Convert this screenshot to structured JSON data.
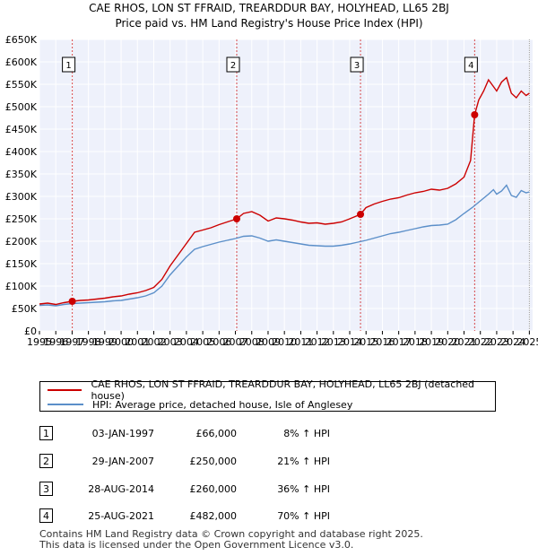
{
  "chart_data": {
    "type": "line",
    "title": "CAE RHOS, LON ST FFRAID, TREARDDUR BAY, HOLYHEAD, LL65 2BJ",
    "subtitle": "Price paid vs. HM Land Registry's House Price Index (HPI)",
    "xlim": [
      1995,
      2025.2
    ],
    "ylim": [
      0,
      650000
    ],
    "x_ticks": [
      "1995",
      "1996",
      "1997",
      "1998",
      "1999",
      "2000",
      "2001",
      "2002",
      "2003",
      "2004",
      "2005",
      "2006",
      "2007",
      "2008",
      "2009",
      "2010",
      "2011",
      "2012",
      "2013",
      "2014",
      "2015",
      "2016",
      "2017",
      "2018",
      "2019",
      "2020",
      "2021",
      "2022",
      "2023",
      "2024",
      "2025"
    ],
    "y_ticks": [
      {
        "value": 0,
        "label": "£0"
      },
      {
        "value": 50000,
        "label": "£50K"
      },
      {
        "value": 100000,
        "label": "£100K"
      },
      {
        "value": 150000,
        "label": "£150K"
      },
      {
        "value": 200000,
        "label": "£200K"
      },
      {
        "value": 250000,
        "label": "£250K"
      },
      {
        "value": 300000,
        "label": "£300K"
      },
      {
        "value": 350000,
        "label": "£350K"
      },
      {
        "value": 400000,
        "label": "£400K"
      },
      {
        "value": 450000,
        "label": "£450K"
      },
      {
        "value": 500000,
        "label": "£500K"
      },
      {
        "value": 550000,
        "label": "£550K"
      },
      {
        "value": 600000,
        "label": "£600K"
      },
      {
        "value": 650000,
        "label": "£650K"
      }
    ],
    "series": [
      {
        "name": "CAE RHOS, LON ST FFRAID, TREARDDUR BAY, HOLYHEAD, LL65 2BJ (detached house)",
        "color": "#cc0000",
        "x": [
          1995.0,
          1995.5,
          1996.0,
          1996.5,
          1997.01,
          1997.5,
          1998.0,
          1998.5,
          1999.0,
          1999.5,
          2000.0,
          2000.5,
          2001.0,
          2001.5,
          2002.0,
          2002.5,
          2003.0,
          2003.5,
          2004.0,
          2004.5,
          2005.0,
          2005.5,
          2006.0,
          2006.5,
          2007.08,
          2007.5,
          2008.0,
          2008.5,
          2009.0,
          2009.5,
          2010.0,
          2010.5,
          2011.0,
          2011.5,
          2012.0,
          2012.5,
          2013.0,
          2013.5,
          2014.0,
          2014.66,
          2015.0,
          2015.5,
          2016.0,
          2016.5,
          2017.0,
          2017.5,
          2018.0,
          2018.5,
          2019.0,
          2019.5,
          2020.0,
          2020.5,
          2021.0,
          2021.4,
          2021.65,
          2021.9,
          2022.2,
          2022.5,
          2022.8,
          2023.0,
          2023.3,
          2023.6,
          2023.9,
          2024.2,
          2024.5,
          2024.8,
          2025.0
        ],
        "values": [
          60000,
          62000,
          59000,
          63000,
          66000,
          68000,
          69000,
          71000,
          73000,
          76000,
          78000,
          82000,
          85000,
          90000,
          97000,
          115000,
          145000,
          170000,
          195000,
          220000,
          225000,
          230000,
          237000,
          243000,
          250000,
          262000,
          266000,
          258000,
          245000,
          252000,
          250000,
          247000,
          243000,
          240000,
          241000,
          238000,
          240000,
          243000,
          250000,
          260000,
          275000,
          283000,
          289000,
          294000,
          297000,
          303000,
          308000,
          311000,
          316000,
          314000,
          318000,
          328000,
          343000,
          380000,
          482000,
          515000,
          535000,
          560000,
          545000,
          535000,
          555000,
          565000,
          530000,
          520000,
          535000,
          525000,
          530000
        ]
      },
      {
        "name": "HPI: Average price, detached house, Isle of Anglesey",
        "color": "#5b8fc9",
        "x": [
          1995.0,
          1995.5,
          1996.0,
          1996.5,
          1997.0,
          1997.5,
          1998.0,
          1998.5,
          1999.0,
          1999.5,
          2000.0,
          2000.5,
          2001.0,
          2001.5,
          2002.0,
          2002.5,
          2003.0,
          2003.5,
          2004.0,
          2004.5,
          2005.0,
          2005.5,
          2006.0,
          2006.5,
          2007.0,
          2007.5,
          2008.0,
          2008.5,
          2009.0,
          2009.5,
          2010.0,
          2010.5,
          2011.0,
          2011.5,
          2012.0,
          2012.5,
          2013.0,
          2013.5,
          2014.0,
          2014.5,
          2015.0,
          2015.5,
          2016.0,
          2016.5,
          2017.0,
          2017.5,
          2018.0,
          2018.5,
          2019.0,
          2019.5,
          2020.0,
          2020.5,
          2021.0,
          2021.5,
          2022.0,
          2022.5,
          2022.8,
          2023.0,
          2023.3,
          2023.6,
          2023.9,
          2024.2,
          2024.5,
          2024.8,
          2025.0
        ],
        "values": [
          57000,
          58000,
          56000,
          59000,
          61000,
          62000,
          63000,
          64000,
          65000,
          67000,
          68000,
          71000,
          74000,
          78000,
          85000,
          100000,
          125000,
          145000,
          165000,
          182000,
          188000,
          193000,
          198000,
          202000,
          206000,
          211000,
          212000,
          207000,
          200000,
          203000,
          200000,
          197000,
          194000,
          191000,
          190000,
          189000,
          189000,
          191000,
          194000,
          198000,
          202000,
          207000,
          212000,
          217000,
          220000,
          224000,
          228000,
          232000,
          235000,
          236000,
          238000,
          248000,
          262000,
          275000,
          290000,
          305000,
          315000,
          305000,
          312000,
          325000,
          302000,
          298000,
          313000,
          308000,
          310000
        ]
      }
    ],
    "sales": [
      {
        "label": "1",
        "x": 1997.01,
        "value": 66000
      },
      {
        "label": "2",
        "x": 2007.08,
        "value": 250000
      },
      {
        "label": "3",
        "x": 2014.66,
        "value": 260000
      },
      {
        "label": "4",
        "x": 2021.65,
        "value": 482000
      }
    ]
  },
  "legend": {
    "property": "CAE RHOS, LON ST FFRAID, TREARDDUR BAY, HOLYHEAD, LL65 2BJ (detached house)",
    "hpi": "HPI: Average price, detached house, Isle of Anglesey",
    "property_color": "#cc0000",
    "hpi_color": "#5b8fc9"
  },
  "transactions": [
    {
      "num": "1",
      "date": "03-JAN-1997",
      "price": "£66,000",
      "hpi": "8% ↑ HPI"
    },
    {
      "num": "2",
      "date": "29-JAN-2007",
      "price": "£250,000",
      "hpi": "21% ↑ HPI"
    },
    {
      "num": "3",
      "date": "28-AUG-2014",
      "price": "£260,000",
      "hpi": "36% ↑ HPI"
    },
    {
      "num": "4",
      "date": "25-AUG-2021",
      "price": "£482,000",
      "hpi": "70% ↑ HPI"
    }
  ],
  "footer": {
    "line1": "Contains HM Land Registry data © Crown copyright and database right 2025.",
    "line2": "This data is licensed under the Open Government Licence v3.0."
  }
}
